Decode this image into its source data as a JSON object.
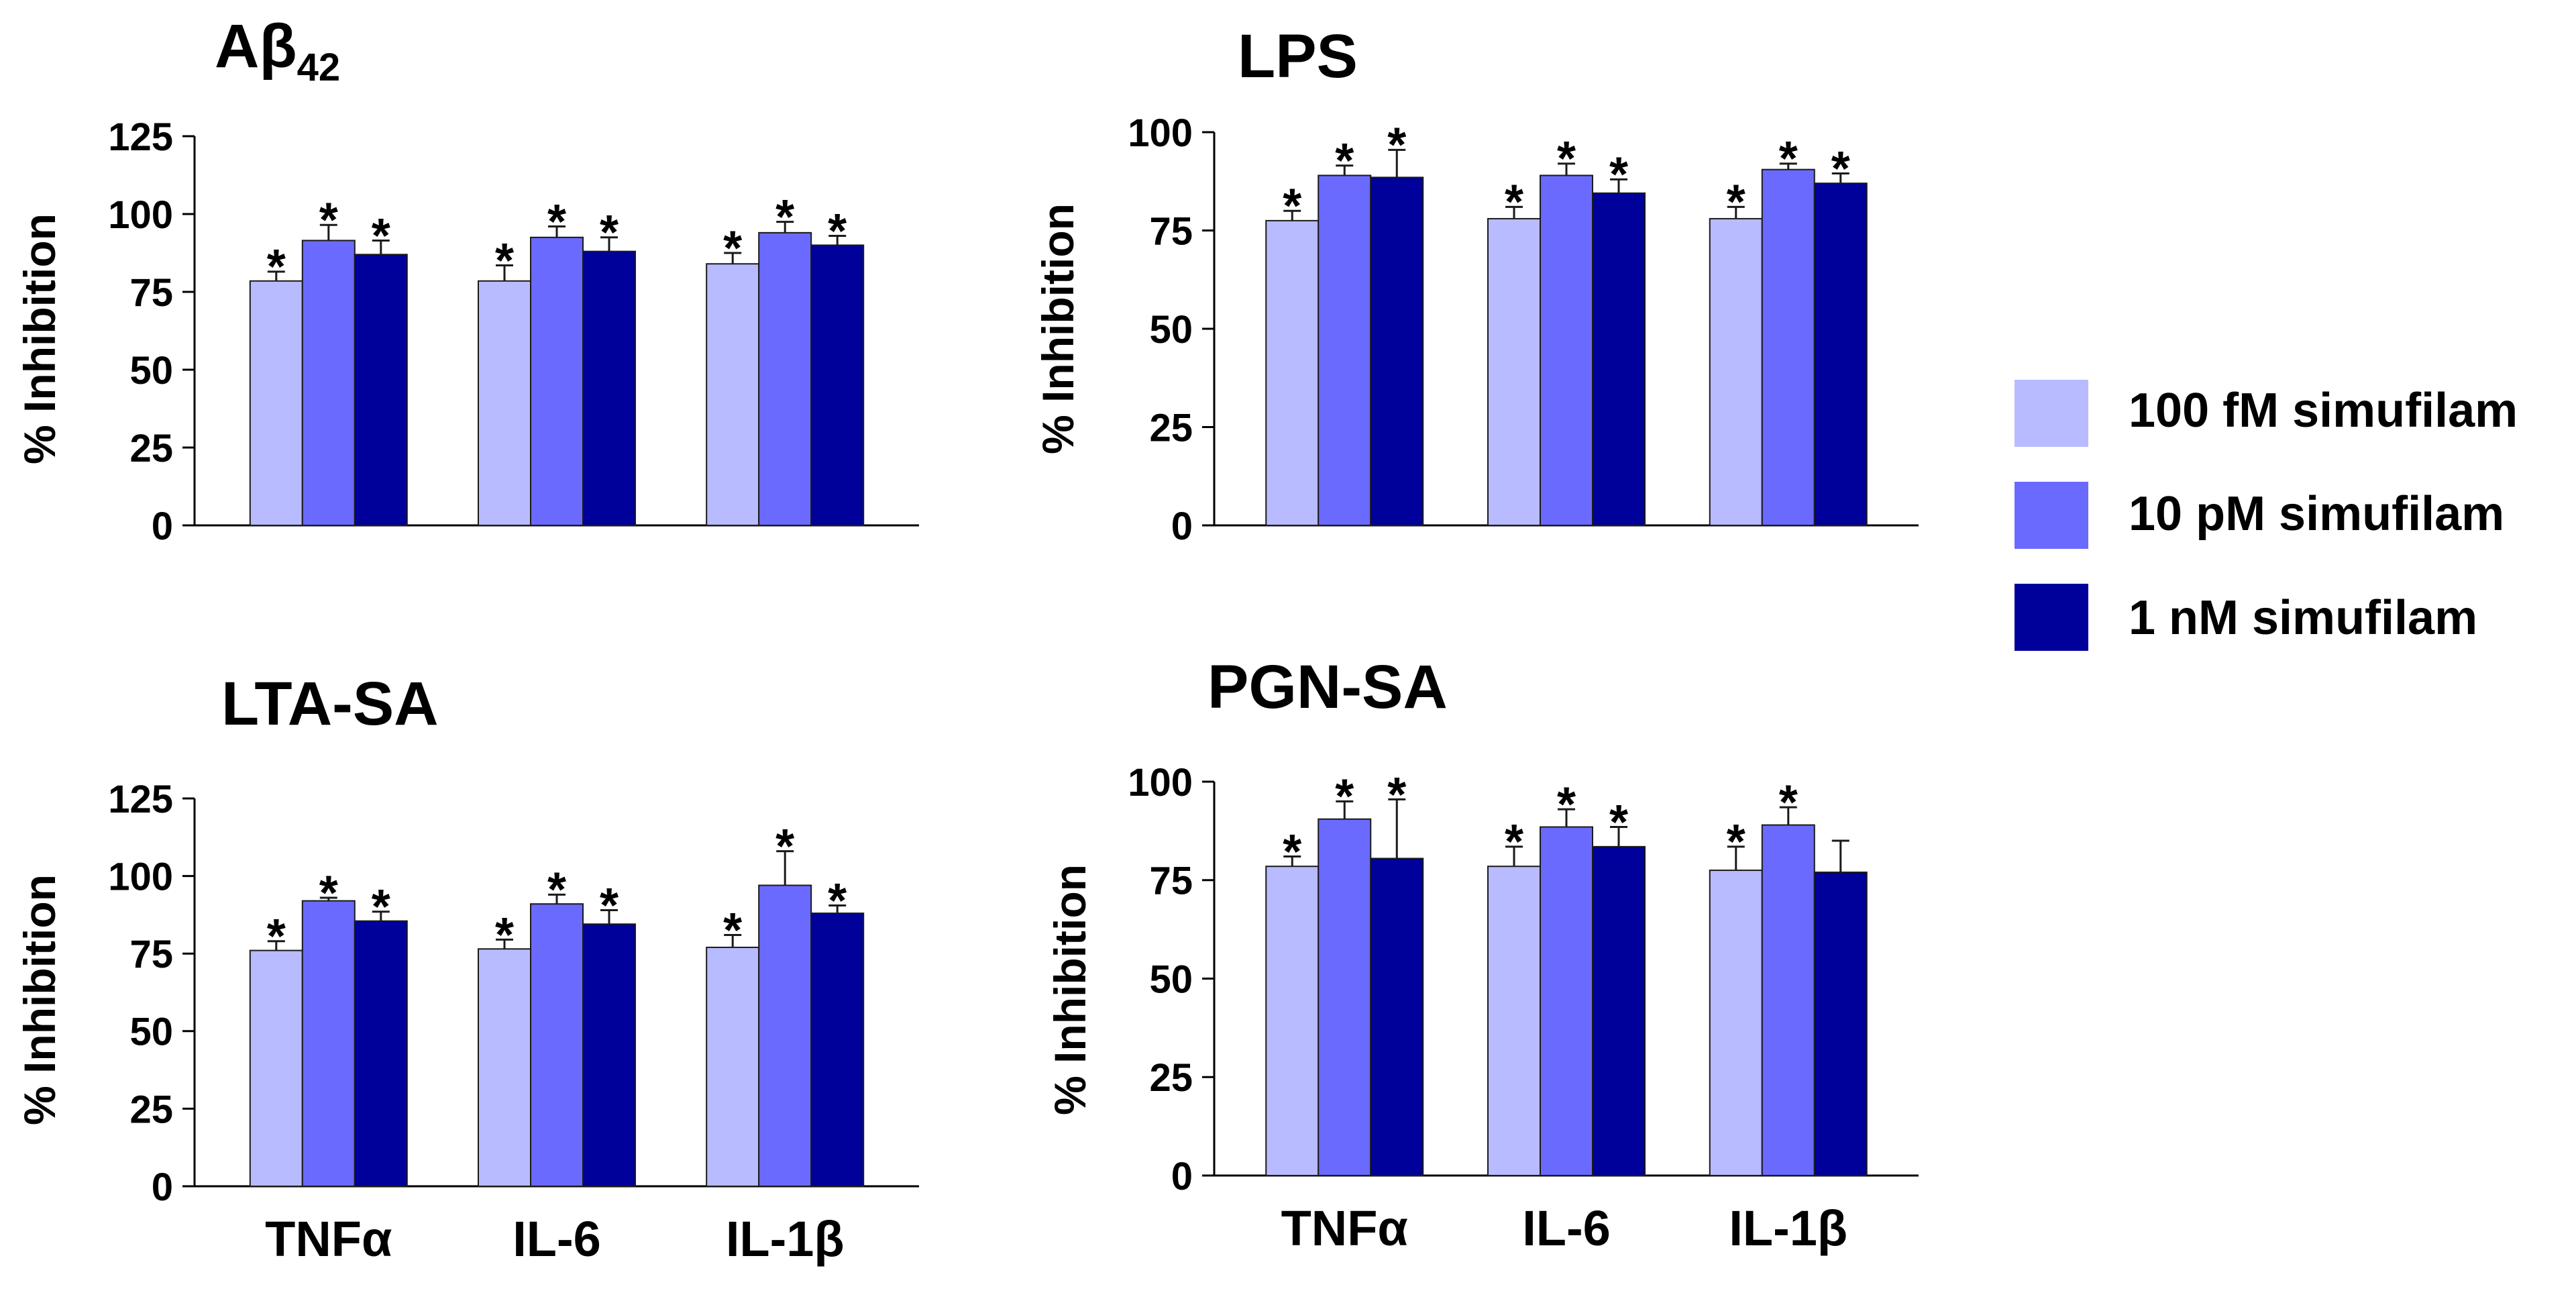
{
  "colors": {
    "s100fM": "#B8BBFF",
    "s10pM": "#6A6AFF",
    "s1nM": "#00009B",
    "axis": "#000000",
    "edge": "#1a1a1a",
    "background": "#FFFFFF"
  },
  "legend": {
    "placement": "right",
    "entries": [
      {
        "label": "100 fM simufilam",
        "color": "#B8BBFF"
      },
      {
        "label": "10 pM simufilam",
        "color": "#6A6AFF"
      },
      {
        "label": "1 nM simufilam",
        "color": "#00009B"
      }
    ]
  },
  "shared_categories": [
    "TNFα",
    "IL-6",
    "IL-1β"
  ],
  "significance_symbol": "*",
  "chart_data": [
    {
      "id": "abeta",
      "type": "bar",
      "title": "Aβ",
      "title_subscript": "42",
      "ylabel": "% Inhibition",
      "xlabel": "",
      "ylim": [
        0,
        125
      ],
      "yticks": [
        0,
        25,
        50,
        75,
        100,
        125
      ],
      "grid": false,
      "show_category_labels": false,
      "categories": [
        "TNFα",
        "IL-6",
        "IL-1β"
      ],
      "series": [
        {
          "name": "100 fM simufilam",
          "values": [
            78.5,
            78.5,
            84
          ],
          "errors": [
            3,
            5,
            3.5
          ],
          "significant": [
            true,
            true,
            true
          ]
        },
        {
          "name": "10 pM simufilam",
          "values": [
            91.5,
            92.5,
            94
          ],
          "errors": [
            5,
            3.5,
            3.5
          ],
          "significant": [
            true,
            true,
            true
          ]
        },
        {
          "name": "1 nM simufilam",
          "values": [
            87,
            88,
            90
          ],
          "errors": [
            4.5,
            4.5,
            3
          ],
          "significant": [
            true,
            true,
            true
          ]
        }
      ]
    },
    {
      "id": "lps",
      "type": "bar",
      "title": "LPS",
      "title_subscript": "",
      "ylabel": "% Inhibition",
      "xlabel": "",
      "ylim": [
        0,
        100
      ],
      "yticks": [
        0,
        25,
        50,
        75,
        100
      ],
      "grid": false,
      "show_category_labels": false,
      "categories": [
        "TNFα",
        "IL-6",
        "IL-1β"
      ],
      "series": [
        {
          "name": "100 fM simufilam",
          "values": [
            77.5,
            78,
            78
          ],
          "errors": [
            2.5,
            3,
            3
          ],
          "significant": [
            true,
            true,
            true
          ]
        },
        {
          "name": "10 pM simufilam",
          "values": [
            89,
            89,
            90.5
          ],
          "errors": [
            2.5,
            3,
            1.5
          ],
          "significant": [
            true,
            true,
            true
          ]
        },
        {
          "name": "1 nM simufilam",
          "values": [
            88.5,
            84.5,
            87
          ],
          "errors": [
            7,
            3.5,
            2.5
          ],
          "significant": [
            true,
            true,
            true
          ]
        }
      ]
    },
    {
      "id": "lta",
      "type": "bar",
      "title": "LTA-SA",
      "title_subscript": "",
      "ylabel": "% Inhibition",
      "xlabel": "",
      "ylim": [
        0,
        125
      ],
      "yticks": [
        0,
        25,
        50,
        75,
        100,
        125
      ],
      "grid": false,
      "show_category_labels": true,
      "categories": [
        "TNFα",
        "IL-6",
        "IL-1β"
      ],
      "series": [
        {
          "name": "100 fM simufilam",
          "values": [
            76,
            76.5,
            77
          ],
          "errors": [
            3,
            3,
            4
          ],
          "significant": [
            true,
            true,
            true
          ]
        },
        {
          "name": "10 pM simufilam",
          "values": [
            92,
            91,
            97
          ],
          "errors": [
            1,
            3,
            11
          ],
          "significant": [
            true,
            true,
            true
          ]
        },
        {
          "name": "1 nM simufilam",
          "values": [
            85.5,
            84.5,
            88
          ],
          "errors": [
            3,
            4.5,
            2.5
          ],
          "significant": [
            true,
            true,
            true
          ]
        }
      ]
    },
    {
      "id": "pgn",
      "type": "bar",
      "title": "PGN-SA",
      "title_subscript": "",
      "ylabel": "% Inhibition",
      "xlabel": "",
      "ylim": [
        0,
        100
      ],
      "yticks": [
        0,
        25,
        50,
        75,
        100
      ],
      "grid": false,
      "show_category_labels": true,
      "categories": [
        "TNFα",
        "IL-6",
        "IL-1β"
      ],
      "series": [
        {
          "name": "100 fM simufilam",
          "values": [
            78.5,
            78.5,
            77.5
          ],
          "errors": [
            2.5,
            5,
            6
          ],
          "significant": [
            true,
            true,
            true
          ]
        },
        {
          "name": "10 pM simufilam",
          "values": [
            90.5,
            88.5,
            89
          ],
          "errors": [
            4.5,
            4.5,
            4.5
          ],
          "significant": [
            true,
            true,
            true
          ]
        },
        {
          "name": "1 nM simufilam",
          "values": [
            80.5,
            83.5,
            77
          ],
          "errors": [
            15,
            5,
            8
          ],
          "significant": [
            true,
            true,
            false
          ]
        }
      ]
    }
  ]
}
